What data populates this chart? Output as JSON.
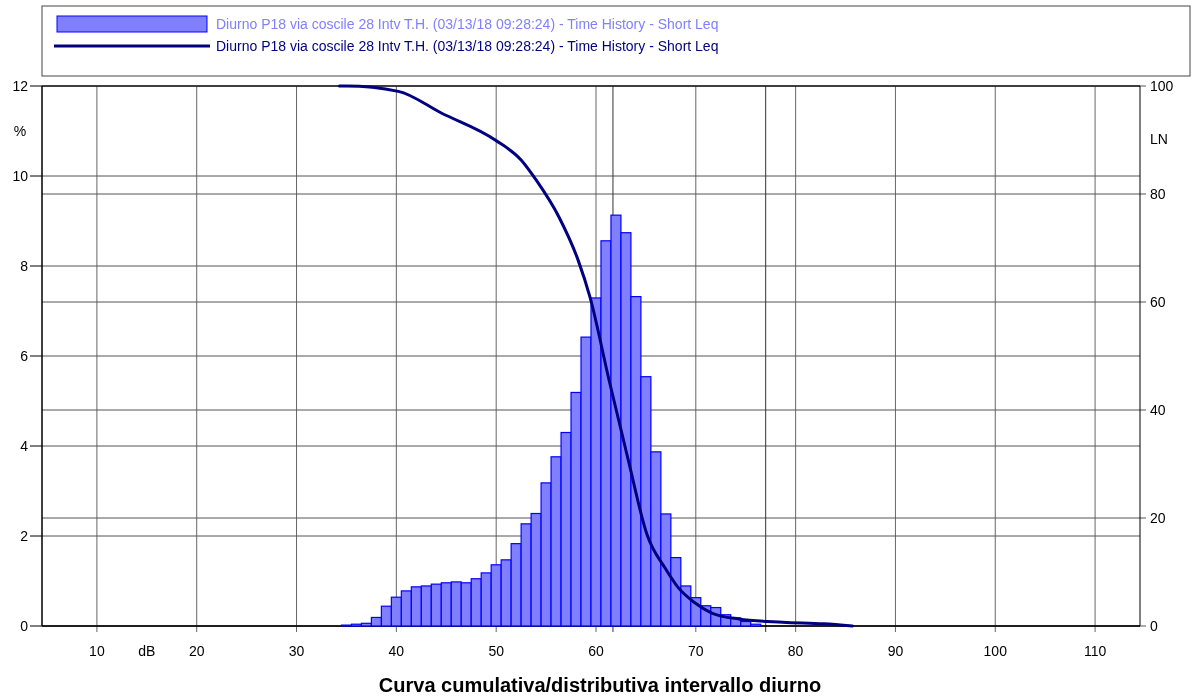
{
  "chart_data": {
    "type": "histogram",
    "title": "Curva cumulativa/distributiva intervallo diurno",
    "xlabel": "dB",
    "ylabel": "%",
    "y2label": "LN",
    "bins": [
      34.5,
      35.5,
      36.5,
      37.5,
      38.5,
      39.5,
      40.5,
      41.5,
      42.5,
      43.5,
      44.5,
      45.5,
      46.5,
      47.5,
      48.5,
      49.5,
      50.5,
      51.5,
      52.5,
      53.5,
      54.5,
      55.5,
      56.5,
      57.5,
      58.5,
      59.5,
      60.5,
      61.5,
      62.5,
      63.5,
      64.5,
      65.5,
      66.5,
      67.5,
      68.5,
      69.5,
      70.5,
      71.5,
      72.5,
      73.5,
      74.5,
      75.5,
      76.5
    ],
    "series": [
      {
        "name": "Diurno P18 via coscile 28 Intv T.H. (03/13/18 09:28:24) - Time History - Short Leq",
        "color": "#8080ff",
        "values": [
          0.02,
          0.04,
          0.06,
          0.19,
          0.44,
          0.64,
          0.78,
          0.87,
          0.89,
          0.93,
          0.96,
          0.98,
          0.96,
          1.05,
          1.18,
          1.36,
          1.47,
          1.83,
          2.27,
          2.5,
          3.18,
          3.76,
          4.3,
          5.19,
          6.42,
          7.29,
          8.56,
          9.13,
          8.74,
          7.32,
          5.54,
          3.87,
          2.49,
          1.52,
          0.89,
          0.63,
          0.45,
          0.41,
          0.25,
          0.18,
          0.1,
          0.04
        ]
      },
      {
        "type": "line",
        "axis": "y2",
        "name": "Diurno P18 via coscile 28 Intv T.H. (03/13/18 09:28:24) - Time History - Short Leq",
        "color": "#000080",
        "x": [
          34.3,
          35,
          40.2,
          44.5,
          49.9,
          52.5,
          54,
          56.3,
          58.2,
          59.4,
          61.3,
          63.2,
          65.1,
          67,
          68.2,
          69.9,
          71.6,
          74.3,
          78.7,
          82.8,
          85.7
        ],
        "values": [
          100,
          100,
          99,
          95,
          90,
          86.3,
          82.6,
          75.7,
          67.8,
          60.9,
          45.6,
          31,
          17,
          10.5,
          7.2,
          4.3,
          2.4,
          1.3,
          0.7,
          0.4,
          0
        ]
      }
    ],
    "xlim": [
      4.5,
      114.5
    ],
    "xticks": [
      10,
      20,
      30,
      40,
      50,
      60,
      70,
      80,
      90,
      100,
      110
    ],
    "ylim": [
      0,
      12
    ],
    "yticks": [
      0,
      2,
      4,
      6,
      8,
      10,
      12
    ],
    "y2lim": [
      0,
      100
    ],
    "y2ticks": [
      0,
      20,
      40,
      60,
      80,
      100
    ],
    "ref_lines": [
      {
        "axis": "x",
        "value": 61.7
      },
      {
        "axis": "x",
        "value": 77
      }
    ],
    "grid": true,
    "legend": "top"
  }
}
